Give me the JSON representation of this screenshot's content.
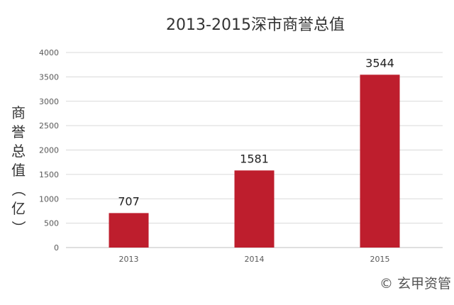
{
  "chart_data": {
    "type": "bar",
    "title": "2013-2015深市商誉总值",
    "xlabel": "",
    "ylabel": "商誉总值（亿）",
    "categories": [
      "2013",
      "2014",
      "2015"
    ],
    "series": [
      {
        "values": [
          707,
          1581,
          3544
        ],
        "color": "#be1e2d"
      }
    ],
    "ylim": [
      0,
      4000
    ],
    "yticks": [
      0,
      500,
      1000,
      1500,
      2000,
      2500,
      3000,
      3500,
      4000
    ],
    "grid": true,
    "data_labels": true
  },
  "watermark": "© 玄甲资管"
}
